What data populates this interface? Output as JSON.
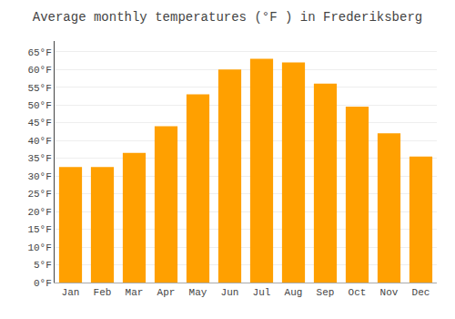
{
  "chart_data": {
    "type": "bar",
    "title": "Average monthly temperatures (°F ) in Frederiksberg",
    "categories": [
      "Jan",
      "Feb",
      "Mar",
      "Apr",
      "May",
      "Jun",
      "Jul",
      "Aug",
      "Sep",
      "Oct",
      "Nov",
      "Dec"
    ],
    "values": [
      32.5,
      32.5,
      36.5,
      44.0,
      53.0,
      60.0,
      63.0,
      62.0,
      56.0,
      49.5,
      42.0,
      35.5
    ],
    "color": "#FFA000",
    "ylim": [
      0,
      68
    ],
    "yticks": [
      {
        "value": 0,
        "label": "0°F"
      },
      {
        "value": 5,
        "label": "5°F"
      },
      {
        "value": 10,
        "label": "10°F"
      },
      {
        "value": 15,
        "label": "15°F"
      },
      {
        "value": 20,
        "label": "20°F"
      },
      {
        "value": 25,
        "label": "25°F"
      },
      {
        "value": 30,
        "label": "30°F"
      },
      {
        "value": 35,
        "label": "35°F"
      },
      {
        "value": 40,
        "label": "40°F"
      },
      {
        "value": 45,
        "label": "45°F"
      },
      {
        "value": 50,
        "label": "50°F"
      },
      {
        "value": 55,
        "label": "55°F"
      },
      {
        "value": 60,
        "label": "60°F"
      },
      {
        "value": 65,
        "label": "65°F"
      }
    ],
    "grid": true
  }
}
